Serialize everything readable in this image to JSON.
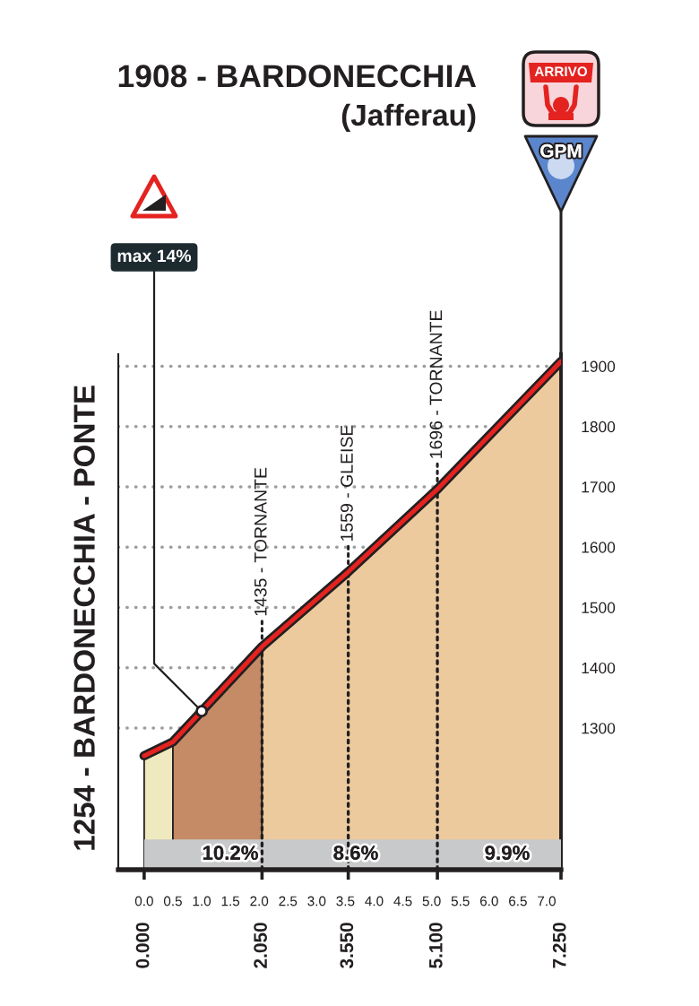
{
  "chart_data": {
    "type": "area",
    "title": "1908 - BARDONECCHIA",
    "subtitle": "(Jafferau)",
    "series": [
      {
        "color": "#efe9bf",
        "x": [
          0,
          0.5
        ],
        "values": [
          1254,
          1277
        ]
      },
      {
        "color": "#c48b66",
        "x": [
          0.5,
          2.05
        ],
        "values": [
          1277,
          1435
        ]
      },
      {
        "color": "#ecca9d",
        "x": [
          2.05,
          3.55,
          5.1,
          7.25
        ],
        "values": [
          1435,
          1559,
          1696,
          1908
        ]
      },
      {
        "type": "line",
        "color": "#e42320",
        "x": [
          0,
          0.5,
          2.05,
          3.55,
          5.1,
          7.25
        ],
        "values": [
          1254,
          1277,
          1435,
          1559,
          1696,
          1908
        ]
      }
    ],
    "xlim": [
      -0.45,
      7.25
    ],
    "xticks": [
      {
        "value": 0,
        "label": "0.0"
      },
      0.5,
      {
        "value": 1,
        "label": "1.0"
      },
      1.5,
      {
        "value": 2,
        "label": "2.0"
      },
      2.5,
      {
        "value": 3,
        "label": "3.0"
      },
      3.5,
      {
        "value": 4,
        "label": "4.0"
      },
      4.5,
      {
        "value": 5,
        "label": "5.0"
      },
      5.5,
      {
        "value": 6,
        "label": "6.0"
      },
      6.5,
      {
        "value": 7,
        "label": "7.0"
      }
    ],
    "x2lim": [
      -0.45,
      7.25
    ],
    "x2ticks": [
      {
        "value": 0,
        "label": "0.000"
      },
      {
        "value": 2.05,
        "label": "2.050"
      },
      {
        "value": 3.55,
        "label": "3.550"
      },
      {
        "value": 5.1,
        "label": "5.100"
      },
      {
        "value": 7.25,
        "label": "7.250"
      }
    ],
    "ylim": [
      1065,
      1920
    ],
    "yticks": [
      1300,
      1400,
      1500,
      1600,
      1700,
      1800,
      1900
    ],
    "grid": "y",
    "ref_lines": [
      {
        "axis": "x",
        "value": 2.05,
        "line_style": "dotted",
        "color": "#231f20"
      },
      {
        "axis": "x",
        "value": 3.55,
        "line_style": "dotted",
        "color": "#231f20"
      },
      {
        "axis": "x",
        "value": 5.1,
        "line_style": "dotted",
        "color": "#231f20"
      }
    ],
    "bands": [
      {
        "axis": "y",
        "from": 1065,
        "to": 1115,
        "color": "#c8c9cb"
      }
    ],
    "annotations": [
      "1254 - BARDONECCHIA - PONTE",
      {
        "text": "1435 - TORNANTE",
        "x": 2.05,
        "y": 1435
      },
      {
        "text": "1559 - GLEISE",
        "x": 3.55,
        "y": 1559
      },
      {
        "text": "1696 - TORNANTE",
        "x": 5.1,
        "y": 1696
      },
      {
        "text": "max 14%",
        "x": 1.0,
        "y": 1328
      },
      "ARRIVO",
      "GPM",
      "10.2%",
      "8.6%",
      "9.9%"
    ]
  }
}
